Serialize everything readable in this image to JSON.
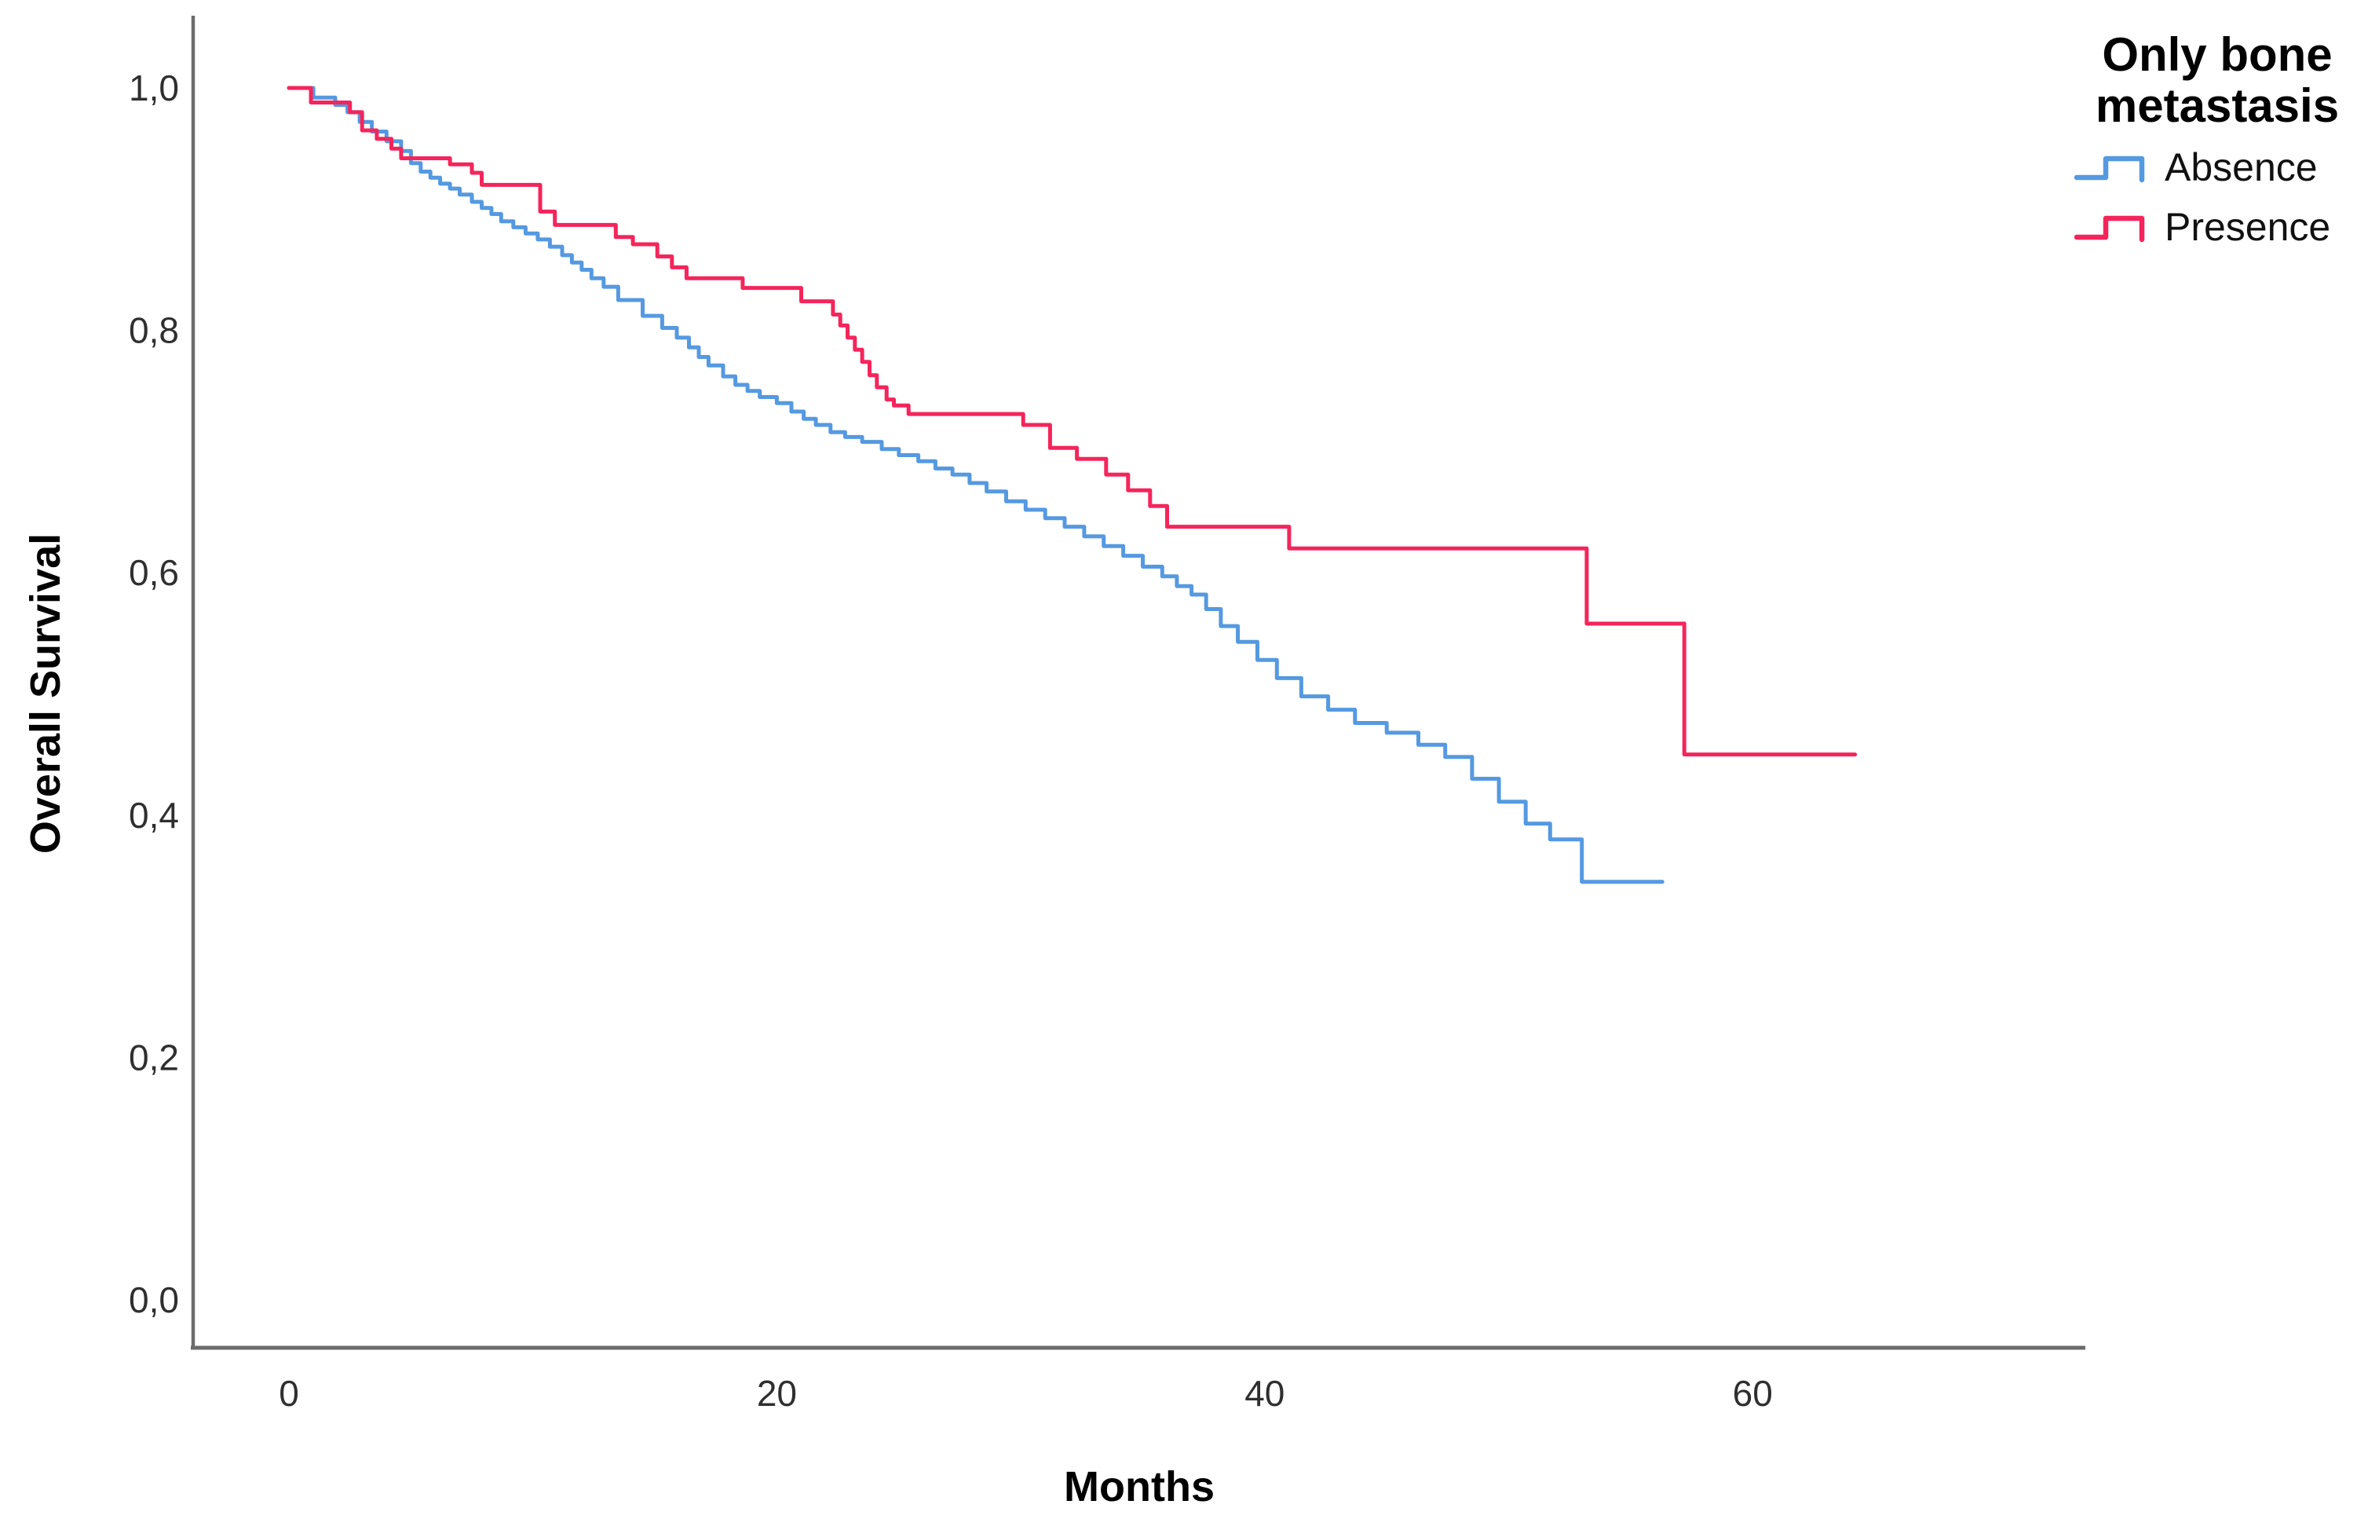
{
  "figure": {
    "background": "#ffffff",
    "axis_line_color": "#6b6b6b",
    "tick_label_color": "#2f2f2f"
  },
  "chart_data": {
    "type": "line",
    "subtype": "kaplan-meier-step",
    "title": "",
    "xlabel": "Months",
    "ylabel": "Overall Survival",
    "grid": false,
    "xlim": [
      0,
      73.6
    ],
    "ylim": [
      0,
      1.0
    ],
    "x_ticks": [
      0,
      20,
      40,
      60
    ],
    "y_ticks": [
      "1,0",
      "0,8",
      "0,6",
      "0,4",
      "0,2",
      "0,0"
    ],
    "y_tick_values": [
      1.0,
      0.8,
      0.6,
      0.4,
      0.2,
      0.0
    ],
    "legend": {
      "position": "top-right",
      "title": "Only bone metastasis",
      "title_lines": [
        "Only bone",
        "metastasis"
      ],
      "entries": [
        {
          "label": "Absence",
          "color": "#5599e0"
        },
        {
          "label": "Presence",
          "color": "#f4255c"
        }
      ]
    },
    "series": [
      {
        "name": "Absence",
        "color": "#5599e0",
        "end_time": 56.3,
        "points": [
          [
            0,
            1.0
          ],
          [
            1.0,
            0.992
          ],
          [
            1.9,
            0.986
          ],
          [
            2.4,
            0.98
          ],
          [
            2.9,
            0.972
          ],
          [
            3.4,
            0.964
          ],
          [
            4.0,
            0.956
          ],
          [
            4.6,
            0.948
          ],
          [
            5.0,
            0.938
          ],
          [
            5.4,
            0.931
          ],
          [
            5.8,
            0.926
          ],
          [
            6.2,
            0.921
          ],
          [
            6.6,
            0.917
          ],
          [
            7.0,
            0.912
          ],
          [
            7.5,
            0.906
          ],
          [
            7.9,
            0.901
          ],
          [
            8.3,
            0.896
          ],
          [
            8.7,
            0.89
          ],
          [
            9.2,
            0.885
          ],
          [
            9.7,
            0.88
          ],
          [
            10.2,
            0.875
          ],
          [
            10.7,
            0.869
          ],
          [
            11.2,
            0.862
          ],
          [
            11.6,
            0.856
          ],
          [
            12.0,
            0.85
          ],
          [
            12.4,
            0.843
          ],
          [
            12.9,
            0.836
          ],
          [
            13.5,
            0.825
          ],
          [
            14.5,
            0.812
          ],
          [
            15.3,
            0.802
          ],
          [
            15.9,
            0.794
          ],
          [
            16.4,
            0.786
          ],
          [
            16.8,
            0.778
          ],
          [
            17.2,
            0.771
          ],
          [
            17.8,
            0.762
          ],
          [
            18.3,
            0.755
          ],
          [
            18.8,
            0.75
          ],
          [
            19.3,
            0.745
          ],
          [
            20.0,
            0.74
          ],
          [
            20.6,
            0.733
          ],
          [
            21.1,
            0.727
          ],
          [
            21.6,
            0.722
          ],
          [
            22.2,
            0.716
          ],
          [
            22.8,
            0.712
          ],
          [
            23.5,
            0.708
          ],
          [
            24.3,
            0.702
          ],
          [
            25.0,
            0.697
          ],
          [
            25.8,
            0.692
          ],
          [
            26.5,
            0.686
          ],
          [
            27.2,
            0.681
          ],
          [
            27.9,
            0.674
          ],
          [
            28.6,
            0.667
          ],
          [
            29.4,
            0.659
          ],
          [
            30.2,
            0.652
          ],
          [
            31.0,
            0.645
          ],
          [
            31.8,
            0.638
          ],
          [
            32.6,
            0.63
          ],
          [
            33.4,
            0.622
          ],
          [
            34.2,
            0.614
          ],
          [
            35.0,
            0.605
          ],
          [
            35.8,
            0.597
          ],
          [
            36.4,
            0.589
          ],
          [
            37.0,
            0.582
          ],
          [
            37.6,
            0.57
          ],
          [
            38.2,
            0.556
          ],
          [
            38.9,
            0.543
          ],
          [
            39.7,
            0.528
          ],
          [
            40.5,
            0.513
          ],
          [
            41.5,
            0.498
          ],
          [
            42.6,
            0.487
          ],
          [
            43.7,
            0.476
          ],
          [
            45.0,
            0.468
          ],
          [
            46.3,
            0.458
          ],
          [
            47.4,
            0.448
          ],
          [
            48.5,
            0.43
          ],
          [
            49.6,
            0.411
          ],
          [
            50.7,
            0.393
          ],
          [
            51.7,
            0.38
          ],
          [
            53.0,
            0.345
          ]
        ]
      },
      {
        "name": "Presence",
        "color": "#f4255c",
        "end_time": 64.2,
        "points": [
          [
            0,
            1.0
          ],
          [
            0.9,
            0.988
          ],
          [
            2.5,
            0.98
          ],
          [
            3.0,
            0.965
          ],
          [
            3.6,
            0.958
          ],
          [
            4.2,
            0.95
          ],
          [
            4.6,
            0.942
          ],
          [
            6.6,
            0.937
          ],
          [
            7.5,
            0.93
          ],
          [
            7.9,
            0.92
          ],
          [
            10.3,
            0.898
          ],
          [
            10.9,
            0.887
          ],
          [
            13.4,
            0.877
          ],
          [
            14.1,
            0.871
          ],
          [
            15.1,
            0.861
          ],
          [
            15.7,
            0.852
          ],
          [
            16.3,
            0.843
          ],
          [
            18.6,
            0.835
          ],
          [
            21.0,
            0.824
          ],
          [
            22.3,
            0.813
          ],
          [
            22.6,
            0.804
          ],
          [
            22.9,
            0.794
          ],
          [
            23.2,
            0.784
          ],
          [
            23.5,
            0.774
          ],
          [
            23.8,
            0.763
          ],
          [
            24.1,
            0.753
          ],
          [
            24.5,
            0.743
          ],
          [
            24.8,
            0.738
          ],
          [
            25.4,
            0.731
          ],
          [
            30.1,
            0.722
          ],
          [
            31.2,
            0.703
          ],
          [
            32.3,
            0.694
          ],
          [
            33.5,
            0.681
          ],
          [
            34.4,
            0.668
          ],
          [
            35.3,
            0.655
          ],
          [
            36.0,
            0.638
          ],
          [
            41.0,
            0.62
          ],
          [
            53.2,
            0.558
          ],
          [
            57.2,
            0.45
          ]
        ]
      }
    ]
  }
}
